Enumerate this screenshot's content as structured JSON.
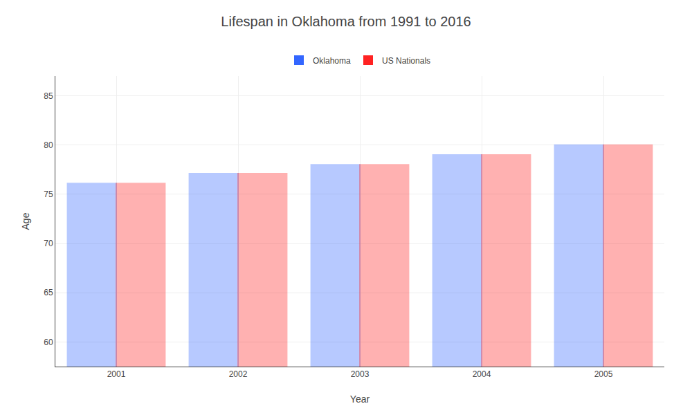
{
  "chart_data": {
    "type": "bar",
    "title": "Lifespan in Oklahoma from 1991 to 2016",
    "xlabel": "Year",
    "ylabel": "Age",
    "categories": [
      "2001",
      "2002",
      "2003",
      "2004",
      "2005"
    ],
    "series": [
      {
        "name": "Oklahoma",
        "color": "#3366ff",
        "values": [
          76.1,
          77.1,
          78.0,
          79.0,
          80.0
        ]
      },
      {
        "name": "US Nationals",
        "color": "#ff2222",
        "values": [
          76.1,
          77.1,
          78.0,
          79.0,
          80.0
        ]
      }
    ],
    "ylim": [
      57.5,
      87
    ],
    "yticks": [
      60,
      65,
      70,
      75,
      80,
      85
    ],
    "grid": true,
    "legend": "top"
  }
}
